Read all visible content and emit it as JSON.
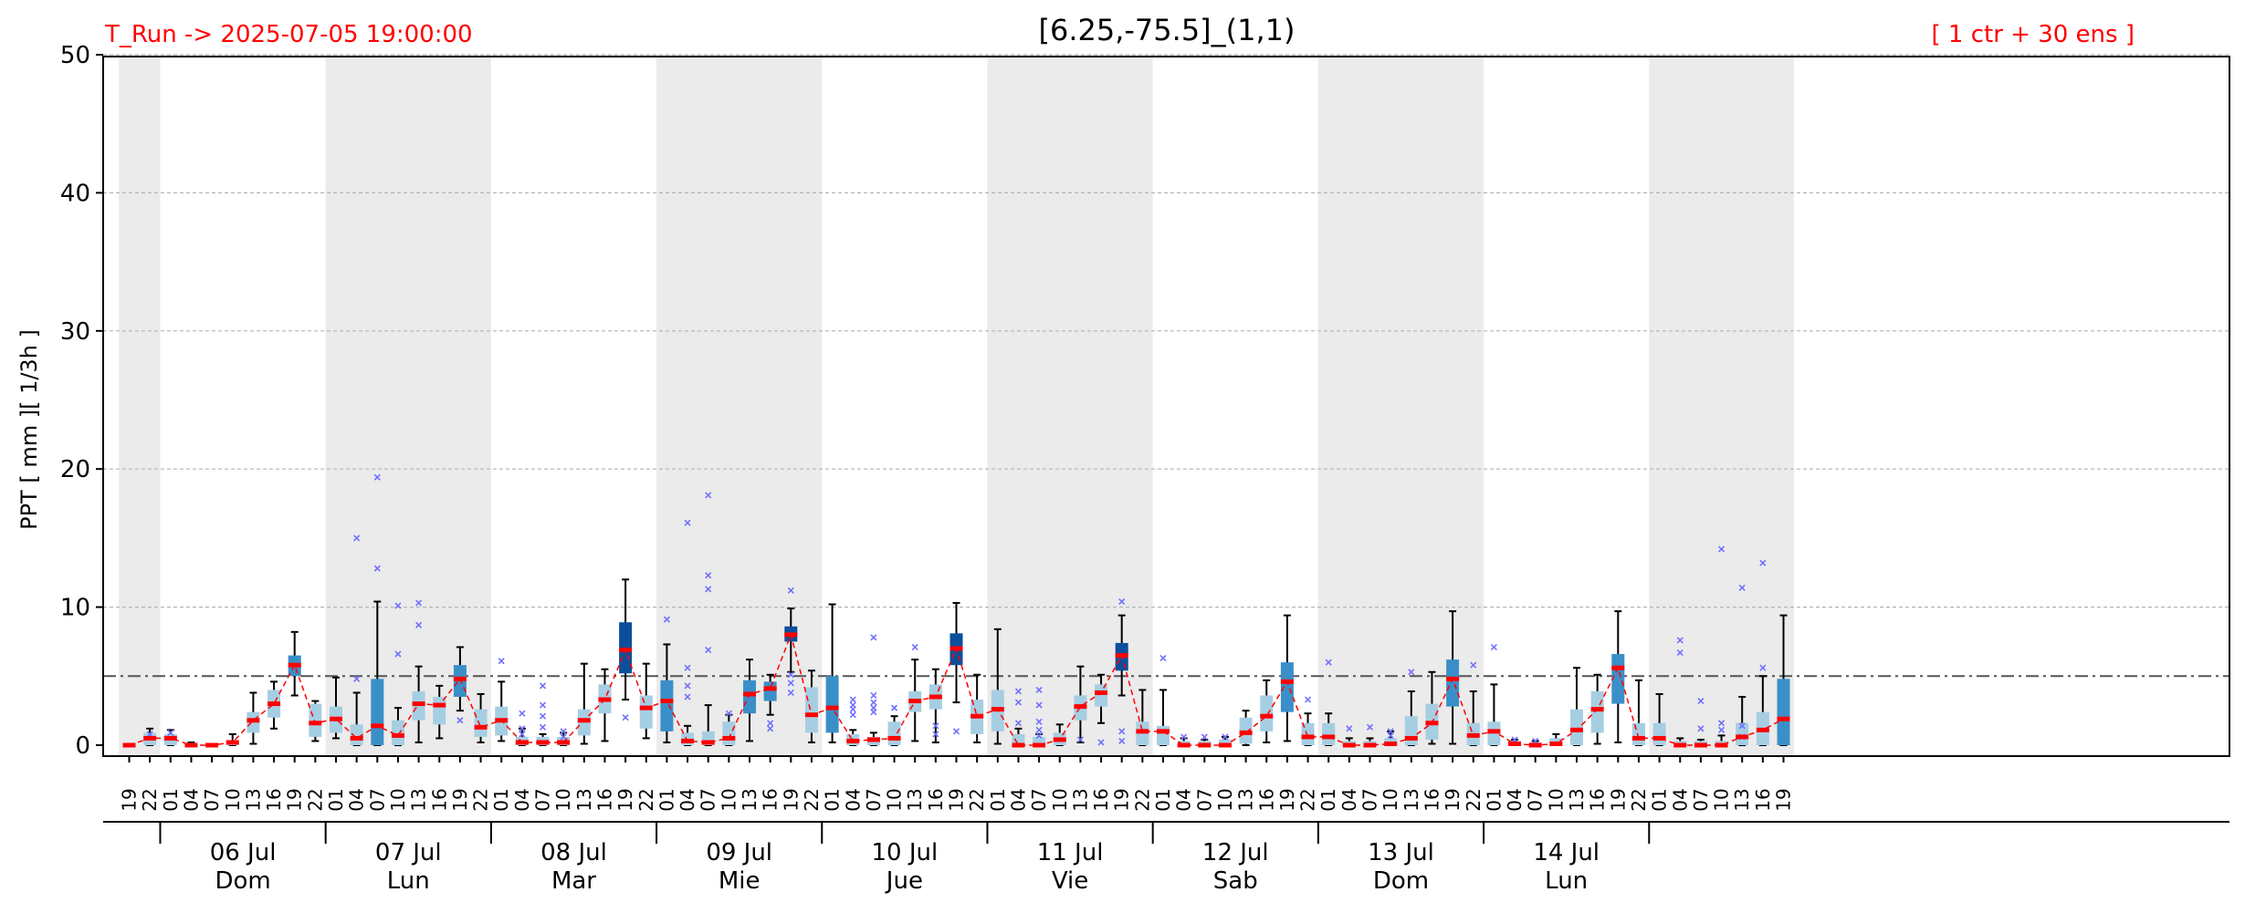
{
  "header": {
    "run_label": "T_Run -> 2025-07-05  19:00:00",
    "title": "[6.25,-75.5]_(1,1)",
    "members_label": "[ 1 ctr + 30 ens ]"
  },
  "colors": {
    "header_red": "#ff0000",
    "shade": "#ebebeb",
    "box_light": "#a6cee3",
    "box_mid": "#3a8fc8",
    "box_dark": "#0b4f9c",
    "median": "#ff0000",
    "outlier": "#7070ff",
    "threshold": "#555555"
  },
  "chart_data": {
    "type": "box",
    "ylabel": "PPT  [ mm ][ 1/3h ]",
    "ylim": [
      -1,
      50
    ],
    "yticks": [
      0,
      10,
      20,
      30,
      40,
      50
    ],
    "threshold": 5,
    "grid": true,
    "hours": [
      "19",
      "22",
      "01",
      "04",
      "07",
      "10",
      "13",
      "16",
      "19",
      "22",
      "01",
      "04",
      "07",
      "10",
      "13",
      "16",
      "19",
      "22",
      "01",
      "04",
      "07",
      "10",
      "13",
      "16",
      "19",
      "22",
      "01",
      "04",
      "07",
      "10",
      "13",
      "16",
      "19",
      "22",
      "01",
      "04",
      "07",
      "10",
      "13",
      "16",
      "19",
      "22",
      "01",
      "04",
      "07",
      "10",
      "13",
      "16",
      "19",
      "22",
      "01",
      "04",
      "07",
      "10",
      "13",
      "16",
      "19",
      "22",
      "01",
      "04",
      "07",
      "10",
      "13",
      "16",
      "19",
      "22",
      "01",
      "04",
      "07",
      "10",
      "13",
      "16",
      "19",
      "22",
      "01",
      "04",
      "07",
      "10",
      "13",
      "16",
      "19"
    ],
    "days": [
      {
        "date": "06 Jul",
        "weekday": "Dom",
        "start": 2
      },
      {
        "date": "07 Jul",
        "weekday": "Lun",
        "start": 10
      },
      {
        "date": "08 Jul",
        "weekday": "Mar",
        "start": 18
      },
      {
        "date": "09 Jul",
        "weekday": "Mie",
        "start": 26
      },
      {
        "date": "10 Jul",
        "weekday": "Jue",
        "start": 34
      },
      {
        "date": "11 Jul",
        "weekday": "Vie",
        "start": 42
      },
      {
        "date": "12 Jul",
        "weekday": "Sab",
        "start": 50
      },
      {
        "date": "13 Jul",
        "weekday": "Dom",
        "start": 58
      },
      {
        "date": "14 Jul",
        "weekday": "Lun",
        "start": 66
      }
    ],
    "night_bands": [
      [
        0,
        1
      ],
      [
        10,
        17
      ],
      [
        26,
        33
      ],
      [
        42,
        49
      ],
      [
        58,
        65
      ],
      [
        74,
        80
      ]
    ],
    "median": [
      0.0,
      0.5,
      0.5,
      0.0,
      0.0,
      0.2,
      1.8,
      3.0,
      5.8,
      1.6,
      1.9,
      0.5,
      1.4,
      0.7,
      3.0,
      2.9,
      4.8,
      1.3,
      1.8,
      0.2,
      0.2,
      0.2,
      1.8,
      3.3,
      6.9,
      2.7,
      3.2,
      0.3,
      0.2,
      0.5,
      3.7,
      4.1,
      8.0,
      2.2,
      2.7,
      0.3,
      0.4,
      0.5,
      3.2,
      3.5,
      7.0,
      2.1,
      2.6,
      0.0,
      0.0,
      0.4,
      2.8,
      3.8,
      6.5,
      1.0,
      1.0,
      0.0,
      0.0,
      0.0,
      0.9,
      2.1,
      4.6,
      0.6,
      0.6,
      0.0,
      0.0,
      0.1,
      0.5,
      1.6,
      4.8,
      0.7,
      1.0,
      0.1,
      0.0,
      0.1,
      1.1,
      2.6,
      5.6,
      0.5,
      0.5,
      0.0,
      0.0,
      0.0,
      0.6,
      1.1,
      1.9
    ],
    "boxes": [
      [
        0.0,
        0.0
      ],
      [
        0.0,
        0.9
      ],
      [
        0.0,
        0.8
      ],
      [
        0.0,
        0.1
      ],
      [
        0.0,
        0.0
      ],
      [
        0.0,
        0.3
      ],
      [
        0.9,
        2.4
      ],
      [
        2.0,
        4.0
      ],
      [
        5.0,
        6.5
      ],
      [
        0.6,
        3.0
      ],
      [
        0.9,
        2.8
      ],
      [
        0.0,
        1.5
      ],
      [
        0.0,
        4.8
      ],
      [
        0.0,
        1.8
      ],
      [
        1.8,
        3.9
      ],
      [
        1.5,
        3.5
      ],
      [
        3.5,
        5.8
      ],
      [
        0.6,
        2.6
      ],
      [
        0.7,
        2.8
      ],
      [
        0.0,
        0.6
      ],
      [
        0.0,
        0.6
      ],
      [
        0.0,
        0.6
      ],
      [
        0.7,
        2.6
      ],
      [
        2.3,
        4.4
      ],
      [
        5.2,
        8.9
      ],
      [
        1.2,
        3.6
      ],
      [
        1.0,
        4.7
      ],
      [
        0.0,
        0.9
      ],
      [
        0.0,
        1.0
      ],
      [
        0.0,
        1.7
      ],
      [
        2.3,
        4.7
      ],
      [
        3.2,
        4.6
      ],
      [
        7.5,
        8.6
      ],
      [
        0.9,
        4.2
      ],
      [
        0.9,
        5.0
      ],
      [
        0.0,
        0.8
      ],
      [
        0.0,
        0.6
      ],
      [
        0.0,
        1.7
      ],
      [
        2.4,
        3.9
      ],
      [
        2.6,
        4.4
      ],
      [
        5.8,
        8.1
      ],
      [
        0.8,
        3.3
      ],
      [
        1.0,
        4.0
      ],
      [
        0.0,
        0.8
      ],
      [
        0.0,
        0.6
      ],
      [
        0.0,
        0.9
      ],
      [
        1.8,
        3.6
      ],
      [
        2.8,
        4.4
      ],
      [
        5.4,
        7.4
      ],
      [
        0.0,
        1.7
      ],
      [
        0.0,
        1.4
      ],
      [
        0.0,
        0.3
      ],
      [
        0.0,
        0.3
      ],
      [
        0.0,
        0.4
      ],
      [
        0.1,
        2.0
      ],
      [
        1.0,
        3.6
      ],
      [
        2.4,
        6.0
      ],
      [
        0.0,
        1.6
      ],
      [
        0.0,
        1.6
      ],
      [
        0.0,
        0.3
      ],
      [
        0.0,
        0.3
      ],
      [
        0.0,
        0.5
      ],
      [
        0.0,
        2.1
      ],
      [
        0.4,
        3.0
      ],
      [
        2.8,
        6.2
      ],
      [
        0.0,
        1.6
      ],
      [
        0.0,
        1.7
      ],
      [
        0.0,
        0.3
      ],
      [
        0.0,
        0.2
      ],
      [
        0.0,
        0.5
      ],
      [
        0.0,
        2.6
      ],
      [
        0.9,
        3.9
      ],
      [
        3.0,
        6.6
      ],
      [
        0.0,
        1.6
      ],
      [
        0.0,
        1.6
      ],
      [
        0.0,
        0.3
      ],
      [
        0.0,
        0.3
      ],
      [
        0.0,
        0.3
      ],
      [
        0.0,
        1.6
      ],
      [
        0.0,
        2.4
      ],
      [
        0.0,
        4.8
      ]
    ],
    "whiskers": [
      [
        0.0,
        0.0
      ],
      [
        0.0,
        1.2
      ],
      [
        0.0,
        1.1
      ],
      [
        0.0,
        0.2
      ],
      [
        0.0,
        0.1
      ],
      [
        0.0,
        0.8
      ],
      [
        0.1,
        3.8
      ],
      [
        1.2,
        4.6
      ],
      [
        3.6,
        8.2
      ],
      [
        0.3,
        3.2
      ],
      [
        0.5,
        4.9
      ],
      [
        0.0,
        3.8
      ],
      [
        0.0,
        10.4
      ],
      [
        0.0,
        2.7
      ],
      [
        0.2,
        5.7
      ],
      [
        0.5,
        4.3
      ],
      [
        2.5,
        7.1
      ],
      [
        0.2,
        3.7
      ],
      [
        0.3,
        4.6
      ],
      [
        0.0,
        1.2
      ],
      [
        0.0,
        0.8
      ],
      [
        0.0,
        0.9
      ],
      [
        0.1,
        5.9
      ],
      [
        0.3,
        5.5
      ],
      [
        3.3,
        12.0
      ],
      [
        0.5,
        5.9
      ],
      [
        0.2,
        7.3
      ],
      [
        0.0,
        1.4
      ],
      [
        0.0,
        2.9
      ],
      [
        0.0,
        2.2
      ],
      [
        0.3,
        6.2
      ],
      [
        2.2,
        5.1
      ],
      [
        5.3,
        9.9
      ],
      [
        0.2,
        5.4
      ],
      [
        0.2,
        10.2
      ],
      [
        0.0,
        1.1
      ],
      [
        0.0,
        0.9
      ],
      [
        0.0,
        2.1
      ],
      [
        0.3,
        6.2
      ],
      [
        0.2,
        5.5
      ],
      [
        3.1,
        10.3
      ],
      [
        0.2,
        5.1
      ],
      [
        0.1,
        8.4
      ],
      [
        0.0,
        1.2
      ],
      [
        0.0,
        0.8
      ],
      [
        0.0,
        1.5
      ],
      [
        0.2,
        5.7
      ],
      [
        1.6,
        5.1
      ],
      [
        3.6,
        9.4
      ],
      [
        0.0,
        4.0
      ],
      [
        0.0,
        4.0
      ],
      [
        0.0,
        0.5
      ],
      [
        0.0,
        0.4
      ],
      [
        0.0,
        0.6
      ],
      [
        0.0,
        2.5
      ],
      [
        0.2,
        4.7
      ],
      [
        0.3,
        9.4
      ],
      [
        0.0,
        2.3
      ],
      [
        0.0,
        2.3
      ],
      [
        0.0,
        0.5
      ],
      [
        0.0,
        0.5
      ],
      [
        0.0,
        1.0
      ],
      [
        0.0,
        3.9
      ],
      [
        0.1,
        5.3
      ],
      [
        0.1,
        9.7
      ],
      [
        0.0,
        3.9
      ],
      [
        0.0,
        4.4
      ],
      [
        0.0,
        0.4
      ],
      [
        0.0,
        0.3
      ],
      [
        0.0,
        0.8
      ],
      [
        0.0,
        5.6
      ],
      [
        0.1,
        5.1
      ],
      [
        0.2,
        9.7
      ],
      [
        0.0,
        4.7
      ],
      [
        0.0,
        3.7
      ],
      [
        0.0,
        0.5
      ],
      [
        0.0,
        0.4
      ],
      [
        0.0,
        0.7
      ],
      [
        0.0,
        3.5
      ],
      [
        0.0,
        5.0
      ],
      [
        0.0,
        9.4
      ]
    ],
    "outliers": [
      [
        1,
        [
          0.8
        ]
      ],
      [
        2,
        [
          0.9
        ]
      ],
      [
        11,
        [
          15.0,
          4.8
        ]
      ],
      [
        12,
        [
          19.4,
          12.8
        ]
      ],
      [
        13,
        [
          10.1,
          6.6
        ]
      ],
      [
        14,
        [
          10.3,
          8.7
        ]
      ],
      [
        16,
        [
          1.8
        ]
      ],
      [
        18,
        [
          6.1
        ]
      ],
      [
        19,
        [
          2.3,
          1.2,
          0.8
        ]
      ],
      [
        20,
        [
          4.3,
          2.9,
          2.1,
          1.3
        ]
      ],
      [
        21,
        [
          1.0,
          0.6
        ]
      ],
      [
        24,
        [
          2.0
        ]
      ],
      [
        26,
        [
          9.1
        ]
      ],
      [
        27,
        [
          16.1,
          5.6,
          4.3,
          3.5
        ]
      ],
      [
        28,
        [
          18.1,
          12.3,
          11.3,
          6.9
        ]
      ],
      [
        29,
        [
          2.3
        ]
      ],
      [
        31,
        [
          1.6,
          1.2
        ]
      ],
      [
        32,
        [
          11.2,
          5.1,
          4.5,
          3.8
        ]
      ],
      [
        35,
        [
          3.3,
          2.9,
          2.6,
          2.2
        ]
      ],
      [
        36,
        [
          7.8,
          3.6,
          3.1,
          2.7,
          2.4
        ]
      ],
      [
        37,
        [
          2.7
        ]
      ],
      [
        38,
        [
          7.1
        ]
      ],
      [
        39,
        [
          1.4,
          0.8
        ]
      ],
      [
        40,
        [
          1.0
        ]
      ],
      [
        43,
        [
          3.9,
          3.1,
          1.6
        ]
      ],
      [
        44,
        [
          4.0,
          2.9,
          1.7,
          1.1,
          0.7
        ]
      ],
      [
        46,
        [
          0.4
        ]
      ],
      [
        47,
        [
          0.2
        ]
      ],
      [
        48,
        [
          10.4,
          1.0,
          0.3
        ]
      ],
      [
        50,
        [
          6.3
        ]
      ],
      [
        51,
        [
          0.6
        ]
      ],
      [
        52,
        [
          0.6
        ]
      ],
      [
        53,
        [
          0.6
        ]
      ],
      [
        57,
        [
          3.3
        ]
      ],
      [
        58,
        [
          6.0
        ]
      ],
      [
        59,
        [
          1.2
        ]
      ],
      [
        60,
        [
          1.3
        ]
      ],
      [
        61,
        [
          1.0,
          0.7
        ]
      ],
      [
        62,
        [
          5.3
        ]
      ],
      [
        65,
        [
          5.8
        ]
      ],
      [
        66,
        [
          7.1
        ]
      ],
      [
        67,
        [
          0.4
        ]
      ],
      [
        68,
        [
          0.3
        ]
      ],
      [
        75,
        [
          7.6,
          6.7
        ]
      ],
      [
        76,
        [
          3.2,
          1.2
        ]
      ],
      [
        77,
        [
          14.2,
          1.6,
          1.1
        ]
      ],
      [
        78,
        [
          11.4,
          1.4,
          0.6
        ]
      ],
      [
        79,
        [
          13.2,
          5.6
        ]
      ]
    ]
  }
}
